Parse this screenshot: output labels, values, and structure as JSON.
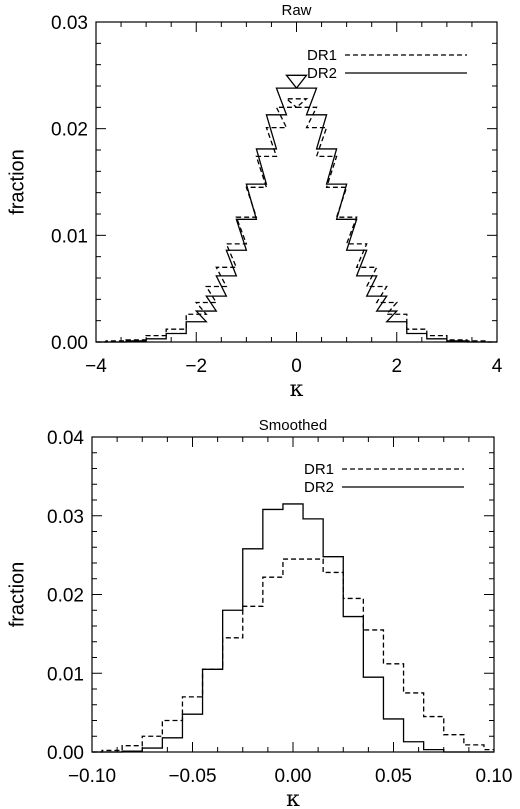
{
  "chart_data": [
    {
      "type": "line",
      "step": true,
      "title": "Raw",
      "xlabel": "κ",
      "ylabel": "fraction",
      "xlim": [
        -4,
        4
      ],
      "ylim": [
        0,
        0.03
      ],
      "xticks": [
        -4,
        -2,
        0,
        2,
        4
      ],
      "xtick_labels": [
        "−4",
        "−2",
        "0",
        "2",
        "4"
      ],
      "yticks": [
        0,
        0.01,
        0.02,
        0.03
      ],
      "ytick_labels": [
        "0.00",
        "0.01",
        "0.02",
        "0.03"
      ],
      "legend_position": "top-right",
      "grid": false,
      "series": [
        {
          "name": "DR1",
          "style": "dashed",
          "x": [
            -4.0,
            -3.6,
            -3.2,
            -2.8,
            -2.4,
            -2.0,
            -1.8,
            -1.6,
            -1.4,
            -1.2,
            -1.0,
            -0.8,
            -0.6,
            -0.4,
            -0.2,
            0.0,
            0.2,
            0.4,
            0.6,
            0.8,
            1.0,
            1.2,
            1.4,
            1.6,
            1.8,
            2.0,
            2.4,
            2.8,
            3.2,
            3.6,
            4.0
          ],
          "values": [
            0.0,
            0.0001,
            0.0002,
            0.0006,
            0.0012,
            0.0026,
            0.0037,
            0.0052,
            0.007,
            0.0092,
            0.0117,
            0.0145,
            0.0174,
            0.0201,
            0.022,
            0.0228,
            0.022,
            0.0201,
            0.0174,
            0.0145,
            0.0117,
            0.0092,
            0.007,
            0.0052,
            0.0037,
            0.0026,
            0.0012,
            0.0006,
            0.0002,
            0.0001,
            0.0
          ]
        },
        {
          "name": "DR2",
          "style": "solid",
          "x": [
            -4.0,
            -3.6,
            -3.2,
            -2.8,
            -2.4,
            -2.0,
            -1.8,
            -1.6,
            -1.4,
            -1.2,
            -1.0,
            -0.8,
            -0.6,
            -0.4,
            -0.2,
            0.0,
            0.2,
            0.4,
            0.6,
            0.8,
            1.0,
            1.2,
            1.4,
            1.6,
            1.8,
            2.0,
            2.4,
            2.8,
            3.2,
            3.6,
            4.0
          ],
          "values": [
            0.0,
            0.0,
            0.0001,
            0.0003,
            0.0008,
            0.0019,
            0.0029,
            0.0043,
            0.0062,
            0.0086,
            0.0115,
            0.0148,
            0.0181,
            0.0213,
            0.0238,
            0.025,
            0.0238,
            0.0213,
            0.0181,
            0.0148,
            0.0115,
            0.0086,
            0.0062,
            0.0043,
            0.0029,
            0.0019,
            0.0008,
            0.0003,
            0.0001,
            0.0,
            0.0
          ]
        }
      ]
    },
    {
      "type": "line",
      "step": true,
      "title": "Smoothed",
      "xlabel": "κ",
      "ylabel": "fraction",
      "xlim": [
        -0.1,
        0.1
      ],
      "ylim": [
        0,
        0.04
      ],
      "xticks": [
        -0.1,
        -0.05,
        0,
        0.05,
        0.1
      ],
      "xtick_labels": [
        "−0.10",
        "−0.05",
        "0.00",
        "0.05",
        "0.10"
      ],
      "yticks": [
        0,
        0.01,
        0.02,
        0.03,
        0.04
      ],
      "ytick_labels": [
        "0.00",
        "0.01",
        "0.02",
        "0.03",
        "0.04"
      ],
      "legend_position": "top-right",
      "grid": false,
      "series": [
        {
          "name": "DR1",
          "style": "dashed",
          "x": [
            -0.1,
            -0.09,
            -0.08,
            -0.07,
            -0.06,
            -0.05,
            -0.04,
            -0.03,
            -0.02,
            -0.01,
            0.0,
            0.01,
            0.02,
            0.03,
            0.04,
            0.05,
            0.06,
            0.07,
            0.08,
            0.09,
            0.1
          ],
          "values": [
            0.0,
            0.0002,
            0.0008,
            0.002,
            0.004,
            0.007,
            0.0105,
            0.0145,
            0.0185,
            0.0222,
            0.0245,
            0.0245,
            0.0228,
            0.0195,
            0.0155,
            0.0112,
            0.0075,
            0.0045,
            0.0022,
            0.0009,
            0.0003
          ]
        },
        {
          "name": "DR2",
          "style": "solid",
          "x": [
            -0.1,
            -0.09,
            -0.08,
            -0.07,
            -0.06,
            -0.05,
            -0.04,
            -0.03,
            -0.02,
            -0.01,
            0.0,
            0.01,
            0.02,
            0.03,
            0.04,
            0.05,
            0.06,
            0.07,
            0.08,
            0.09,
            0.1
          ],
          "values": [
            0.0,
            0.0,
            0.0001,
            0.0005,
            0.0018,
            0.0048,
            0.0105,
            0.018,
            0.0258,
            0.0308,
            0.0315,
            0.0296,
            0.0248,
            0.0172,
            0.0095,
            0.0042,
            0.0013,
            0.0003,
            0.0,
            0.0,
            0.0
          ]
        }
      ]
    }
  ]
}
